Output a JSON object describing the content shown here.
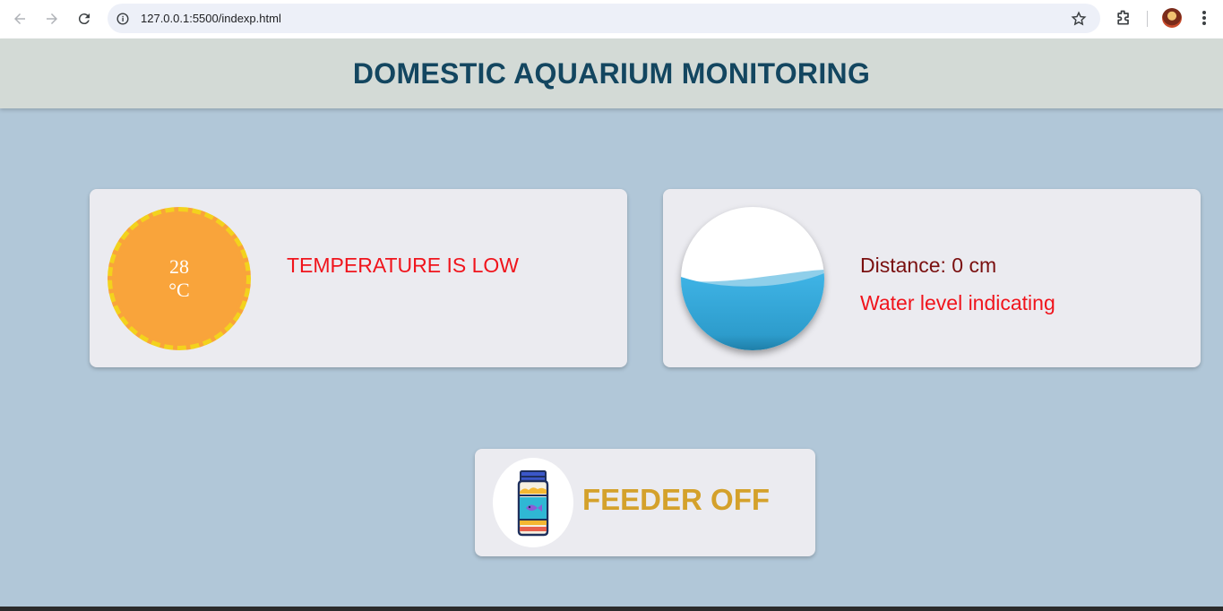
{
  "browser": {
    "url": "127.0.0.1:5500/indexp.html",
    "icons": [
      "back-icon",
      "forward-icon",
      "reload-icon",
      "site-info-icon",
      "bookmark-star-icon",
      "extensions-icon",
      "profile-avatar",
      "menu-icon"
    ]
  },
  "header": {
    "title": "DOMESTIC AQUARIUM MONITORING"
  },
  "temperature": {
    "value": "28",
    "unit": "°C",
    "status": "TEMPERATURE IS LOW"
  },
  "water": {
    "distance": "Distance: 0 cm",
    "indicator": "Water level indicating",
    "level_fraction": 0.5
  },
  "feeder": {
    "status": "FEEDER OFF",
    "icon": "fish-food-jar-icon"
  },
  "colors": {
    "page_bg": "#b1c7d8",
    "header_bg": "#d3dad6",
    "title": "#134660",
    "sun_fill": "#f9a43b",
    "sun_ring": "#f3d21d",
    "alert_red": "#f0141c",
    "distance_text": "#7a0f0f",
    "water_blue": "#3aafe0",
    "feeder_gold": "#d4a12b"
  }
}
